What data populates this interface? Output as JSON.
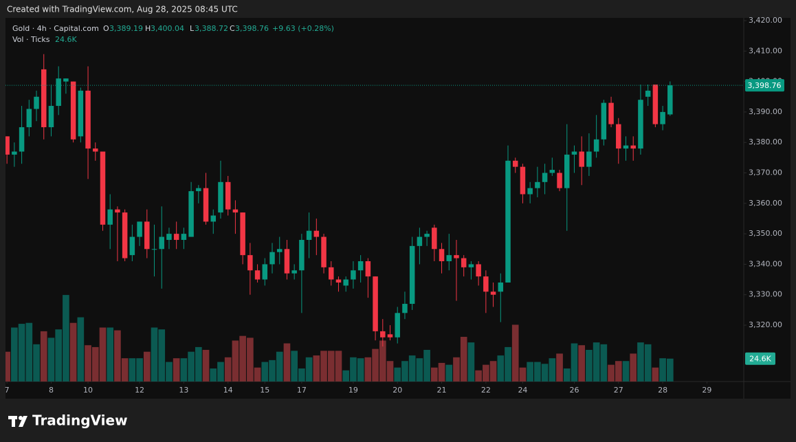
{
  "chart_data": {
    "type": "candlestick",
    "header": "Created with TradingView.com, Aug 28, 2025 08:45 UTC",
    "legend": {
      "symbol": "Gold · 4h · Capital.com",
      "o_key": "O",
      "o": "3,389.19",
      "h_key": "H",
      "h": "3,400.04",
      "l_key": "L",
      "l": "3,388.72",
      "c_key": "C",
      "c": "3,398.76",
      "change": "+9.63 (+0.28%)",
      "vol_name": "Vol · Ticks",
      "vol": "24.6K"
    },
    "logo": "TradingView",
    "up_color": "#089981",
    "down_color": "#f23645",
    "volume_up_color": "#0b5a52",
    "volume_down_color": "#7a2e31",
    "open": [
      3382,
      3376,
      3377,
      3385,
      3391,
      3404,
      3385,
      3392,
      3400,
      3400,
      3382,
      3397,
      3378,
      3377,
      3353,
      3358,
      3357,
      3343,
      3349,
      3354,
      3345,
      3345,
      3348,
      3350,
      3348,
      3349,
      3364,
      3365,
      3354,
      3357,
      3367,
      3358,
      3357,
      3343,
      3338,
      3335,
      3340,
      3344,
      3345,
      3337,
      3338,
      3348,
      3351,
      3349,
      3339,
      3335,
      3333,
      3335,
      3338,
      3341,
      3336,
      3318,
      3317,
      3316,
      3324,
      3327,
      3346,
      3349,
      3352,
      3345,
      3341,
      3343,
      3342,
      3339,
      3340,
      3336,
      3331,
      3331,
      3334,
      3374,
      3372,
      3363,
      3365,
      3367,
      3370,
      3370,
      3365,
      3376,
      3377,
      3372,
      3377,
      3381,
      3393,
      3386,
      3378,
      3379,
      3378,
      3395,
      3399,
      3386,
      3389.19
    ],
    "high": [
      3382,
      3380,
      3392,
      3394,
      3397,
      3409,
      3399,
      3405,
      3401,
      3400,
      3398,
      3405,
      3380,
      3377,
      3363,
      3359,
      3358,
      3353,
      3354,
      3358,
      3353,
      3359,
      3352,
      3354,
      3352,
      3367,
      3366,
      3370,
      3358,
      3374,
      3369,
      3361,
      3357,
      3347,
      3340,
      3342,
      3347,
      3349,
      3348,
      3340,
      3350,
      3357,
      3355,
      3350,
      3341,
      3336,
      3336,
      3341,
      3343,
      3342,
      3336,
      3322,
      3320,
      3326,
      3331,
      3349,
      3352,
      3351,
      3353,
      3347,
      3350,
      3348,
      3343,
      3341,
      3341,
      3338,
      3334,
      3337,
      3379,
      3375,
      3373,
      3367,
      3372,
      3373,
      3375,
      3371,
      3386,
      3379,
      3382,
      3383,
      3389,
      3394,
      3395,
      3388,
      3382,
      3382,
      3399,
      3399,
      3399,
      3392,
      3400.04
    ],
    "low": [
      3373,
      3372,
      3373,
      3382,
      3387,
      3381,
      3382,
      3389,
      3396,
      3380,
      3380,
      3368,
      3374,
      3351,
      3345,
      3341,
      3341,
      3341,
      3346,
      3342,
      3336,
      3332,
      3345,
      3345,
      3345,
      3349,
      3360,
      3353,
      3350,
      3355,
      3356,
      3350,
      3340,
      3330,
      3334,
      3333,
      3337,
      3340,
      3335,
      3335,
      3324,
      3342,
      3343,
      3337,
      3333,
      3331,
      3331,
      3332,
      3334,
      3329,
      3315,
      3313,
      3315,
      3314,
      3322,
      3325,
      3340,
      3346,
      3341,
      3337,
      3338,
      3328,
      3336,
      3335,
      3333,
      3324,
      3326,
      3321,
      3334,
      3370,
      3360,
      3360,
      3362,
      3363,
      3369,
      3364,
      3351,
      3370,
      3366,
      3369,
      3375,
      3379,
      3385,
      3373,
      3374,
      3374,
      3376,
      3392,
      3385,
      3384,
      3388.72
    ],
    "close": [
      3376,
      3377,
      3385,
      3391,
      3395,
      3385,
      3392,
      3401,
      3401,
      3381,
      3397,
      3378,
      3377,
      3353,
      3358,
      3357,
      3342,
      3349,
      3354,
      3345,
      3345,
      3349,
      3350,
      3348,
      3350,
      3364,
      3365,
      3354,
      3356,
      3367,
      3358,
      3357,
      3343,
      3338,
      3335,
      3340,
      3344,
      3345,
      3337,
      3338,
      3348,
      3351,
      3349,
      3339,
      3335,
      3334,
      3335,
      3338,
      3341,
      3336,
      3318,
      3316,
      3316,
      3324,
      3327,
      3346,
      3349,
      3350,
      3345,
      3341,
      3343,
      3342,
      3339,
      3340,
      3336,
      3331,
      3330,
      3334,
      3374,
      3372,
      3363,
      3365,
      3367,
      3370,
      3371,
      3365,
      3376,
      3377,
      3372,
      3377,
      3381,
      3393,
      3386,
      3378,
      3379,
      3378,
      3394,
      3397,
      3386,
      3390,
      3398.76
    ],
    "volume": [
      32,
      58,
      62,
      63,
      40,
      54,
      47,
      56,
      93,
      63,
      69,
      39,
      37,
      58,
      58,
      55,
      25,
      25,
      25,
      32,
      58,
      56,
      21,
      25,
      25,
      32,
      37,
      34,
      14,
      21,
      26,
      44,
      49,
      47,
      15,
      21,
      23,
      32,
      41,
      33,
      14,
      26,
      28,
      33,
      33,
      33,
      12,
      26,
      25,
      26,
      35,
      44,
      22,
      15,
      22,
      28,
      25,
      34,
      15,
      20,
      18,
      26,
      48,
      42,
      12,
      18,
      22,
      28,
      37,
      61,
      15,
      21,
      21,
      19,
      25,
      30,
      14,
      41,
      39,
      34,
      42,
      40,
      18,
      22,
      22,
      30,
      42,
      40,
      15,
      25,
      24.6
    ],
    "last_price_label": "3,398.76",
    "last_volume_label": "24.6K",
    "xlim": [
      -0.2,
      100
    ],
    "xticks": [
      {
        "value": 0,
        "label": "7"
      },
      {
        "value": 6,
        "label": "8"
      },
      {
        "value": 11,
        "label": "10"
      },
      {
        "value": 18,
        "label": "12"
      },
      {
        "value": 24,
        "label": "13"
      },
      {
        "value": 30,
        "label": "14"
      },
      {
        "value": 35,
        "label": "15"
      },
      {
        "value": 40,
        "label": "17"
      },
      {
        "value": 47,
        "label": "19"
      },
      {
        "value": 53,
        "label": "20"
      },
      {
        "value": 59,
        "label": "21"
      },
      {
        "value": 65,
        "label": "22"
      },
      {
        "value": 70,
        "label": "24"
      },
      {
        "value": 77,
        "label": "26"
      },
      {
        "value": 83,
        "label": "27"
      },
      {
        "value": 89,
        "label": "28"
      },
      {
        "value": 95,
        "label": "29"
      }
    ],
    "ylim": [
      3301.5,
      3420.9
    ],
    "yticks": [
      {
        "value": 3320,
        "label": "3,320.00"
      },
      {
        "value": 3330,
        "label": "3,330.00"
      },
      {
        "value": 3340,
        "label": "3,340.00"
      },
      {
        "value": 3350,
        "label": "3,350.00"
      },
      {
        "value": 3360,
        "label": "3,360.00"
      },
      {
        "value": 3370,
        "label": "3,370.00"
      },
      {
        "value": 3380,
        "label": "3,380.00"
      },
      {
        "value": 3390,
        "label": "3,390.00"
      },
      {
        "value": 3400,
        "label": "3,400.00"
      },
      {
        "value": 3410,
        "label": "3,410.00"
      },
      {
        "value": 3420,
        "label": "3,420.00"
      }
    ]
  }
}
